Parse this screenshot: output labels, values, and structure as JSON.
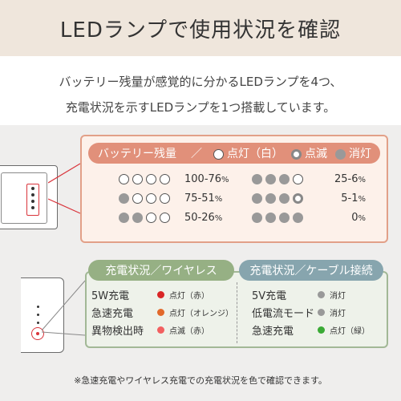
{
  "header": {
    "title": "LEDランプで使用状況を確認"
  },
  "intro": {
    "line1": "バッテリー残量が感覚的に分かるLEDランプを4つ、",
    "line2": "充電状況を示すLEDランプを1つ搭載しています。"
  },
  "battery": {
    "title": "バッテリー残量",
    "sep": "／",
    "legend": [
      {
        "icon": "led-on-icon",
        "label": "点灯（白）"
      },
      {
        "icon": "led-blink-icon",
        "label": "点滅"
      },
      {
        "icon": "led-off-icon",
        "label": "消灯"
      }
    ],
    "levels": [
      {
        "leds": [
          "on",
          "on",
          "on",
          "on"
        ],
        "value": "100-76",
        "unit": "%"
      },
      {
        "leds": [
          "off",
          "on",
          "on",
          "on"
        ],
        "value": "75-51",
        "unit": "%"
      },
      {
        "leds": [
          "off",
          "off",
          "on",
          "on"
        ],
        "value": "50-26",
        "unit": "%"
      },
      {
        "leds": [
          "off",
          "off",
          "off",
          "on"
        ],
        "value": "25-6",
        "unit": "%"
      },
      {
        "leds": [
          "off",
          "off",
          "off",
          "blink"
        ],
        "value": "5-1",
        "unit": "%"
      },
      {
        "leds": [
          "off",
          "off",
          "off",
          "off"
        ],
        "value": "0",
        "unit": "%"
      }
    ]
  },
  "charging": {
    "wireless_title": "充電状況／ワイヤレス",
    "cable_title": "充電状況／ケーブル接続",
    "wireless": [
      {
        "label": "5W充電",
        "color": "#d92626",
        "status": "点灯（赤）"
      },
      {
        "label": "急速充電",
        "color": "#e2692b",
        "status": "点灯（オレンジ）"
      },
      {
        "label": "異物検出時",
        "color": "#f26060",
        "status": "点滅（赤）"
      }
    ],
    "cable": [
      {
        "label": "5V充電",
        "color": "#999999",
        "status": "消灯"
      },
      {
        "label": "低電流モード",
        "color": "#999999",
        "status": "消灯"
      },
      {
        "label": "急速充電",
        "color": "#3aaa35",
        "status": "点灯（緑）"
      }
    ]
  },
  "note": "※急速充電やワイヤレス充電での充電状況を色で確認できます。",
  "colors": {
    "header_bg": "#efe6dc",
    "battery_accent": "#e1907a",
    "wireless_accent": "#96b084",
    "cable_accent": "#87a5ae"
  }
}
